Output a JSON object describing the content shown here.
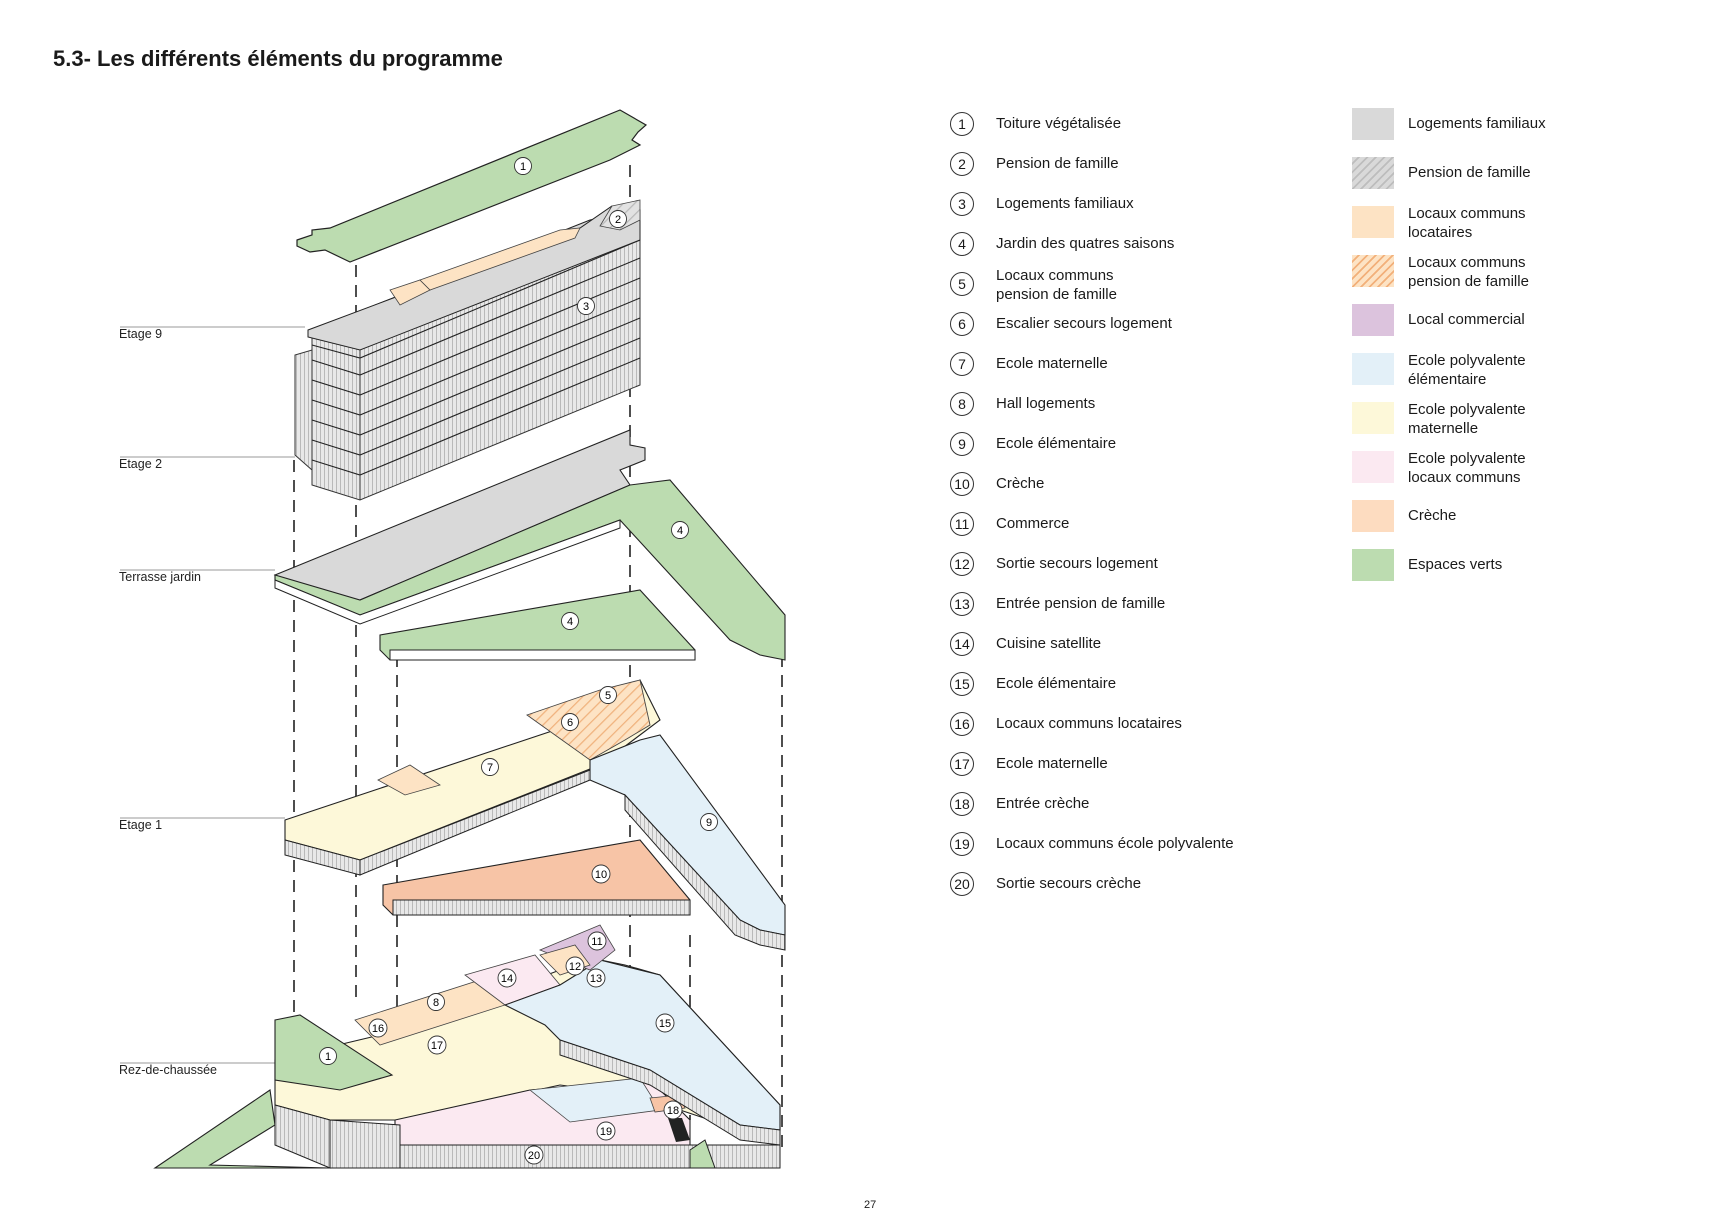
{
  "title": "5.3- Les différents éléments du programme",
  "page_number": "27",
  "levels": [
    "Etage 9",
    "Etage 2",
    "Terrasse jardin",
    "Etage 1",
    "Rez-de-chaussée"
  ],
  "numbered_items": [
    {
      "num": "1",
      "label": "Toiture végétalisée"
    },
    {
      "num": "2",
      "label": "Pension de famille"
    },
    {
      "num": "3",
      "label": "Logements familiaux"
    },
    {
      "num": "4",
      "label": "Jardin des quatres saisons"
    },
    {
      "num": "5",
      "label": "Locaux communs pension de famille"
    },
    {
      "num": "6",
      "label": "Escalier secours logement"
    },
    {
      "num": "7",
      "label": "Ecole maternelle"
    },
    {
      "num": "8",
      "label": "Hall logements"
    },
    {
      "num": "9",
      "label": "Ecole élémentaire"
    },
    {
      "num": "10",
      "label": "Crèche"
    },
    {
      "num": "11",
      "label": "Commerce"
    },
    {
      "num": "12",
      "label": "Sortie secours logement"
    },
    {
      "num": "13",
      "label": "Entrée pension de famille"
    },
    {
      "num": "14",
      "label": "Cuisine satellite"
    },
    {
      "num": "15",
      "label": "Ecole élémentaire"
    },
    {
      "num": "16",
      "label": "Locaux communs locataires"
    },
    {
      "num": "17",
      "label": "Ecole maternelle"
    },
    {
      "num": "18",
      "label": "Entrée crèche"
    },
    {
      "num": "19",
      "label": "Locaux communs école polyvalente"
    },
    {
      "num": "20",
      "label": "Sortie secours crèche"
    }
  ],
  "legend": [
    {
      "label": "Logements familiaux",
      "color": "#d9d9d9",
      "hatched": false
    },
    {
      "label": "Pension de famille",
      "color": "#d9d9d9",
      "hatched": true
    },
    {
      "label": "Locaux communs locataires",
      "color": "#fde3c4",
      "hatched": false
    },
    {
      "label": "Locaux communs pension de famille",
      "color": "#fde3c4",
      "hatched": true
    },
    {
      "label": "Local commercial",
      "color": "#dcc3dd",
      "hatched": false
    },
    {
      "label": "Ecole polyvalente élémentaire",
      "color": "#e3f0f8",
      "hatched": false
    },
    {
      "label": "Ecole polyvalente maternelle",
      "color": "#fdf8d9",
      "hatched": false
    },
    {
      "label": "Ecole polyvalente locaux communs",
      "color": "#fbe9f1",
      "hatched": false
    },
    {
      "label": "Crèche",
      "color": "#fddcc0",
      "hatched": false
    },
    {
      "label": "Espaces verts",
      "color": "#bcdcb0",
      "hatched": false
    }
  ],
  "colors": {
    "green": "#bcdcb0",
    "grey": "#d9d9d9",
    "yellow": "#fdf8d9",
    "blue": "#e3f0f8",
    "salmon": "#f7c4a6",
    "pink": "#fbe9f1",
    "purple": "#dcc3dd",
    "peach": "#fde3c4"
  }
}
